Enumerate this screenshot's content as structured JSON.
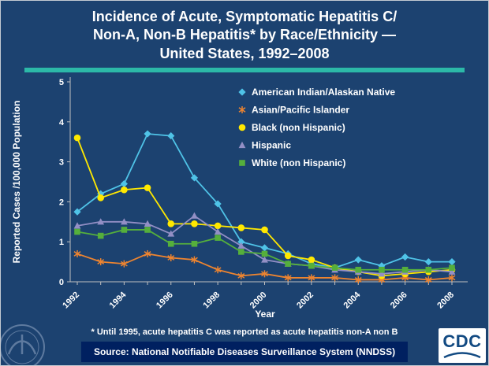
{
  "title": "Incidence of Acute, Symptomatic Hepatitis C/\nNon-A, Non-B Hepatitis* by Race/Ethnicity —\nUnited States, 1992–2008",
  "footnote": "* Until 1995, acute hepatitis C was reported as acute hepatitis non-A non B",
  "source": "Source: National Notifiable Diseases Surveillance System (NNDSS)",
  "cdc_logo_text": "CDC",
  "colors": {
    "background": "#1c4270",
    "divider_teal": "#2cb9a8",
    "source_bar_bg": "#002060",
    "cdc_blue": "#124a82"
  },
  "chart_data": {
    "type": "line",
    "title": "",
    "xlabel": "Year",
    "ylabel": "Reported Cases /100,000 Population",
    "x": [
      1992,
      1993,
      1994,
      1995,
      1996,
      1997,
      1998,
      1999,
      2000,
      2001,
      2002,
      2003,
      2004,
      2005,
      2006,
      2007,
      2008
    ],
    "x_tick_labels": [
      1992,
      1994,
      1996,
      1998,
      2000,
      2002,
      2004,
      2006,
      2008
    ],
    "ylim": [
      0,
      5
    ],
    "yticks": [
      0,
      1,
      2,
      3,
      4,
      5
    ],
    "grid": false,
    "legend_position": "top-right",
    "axis_color": "#c0c0c0",
    "series": [
      {
        "name": "American Indian/Alaskan Native",
        "marker": "diamond",
        "color": "#4fc3e7",
        "values": [
          1.75,
          2.2,
          2.45,
          3.7,
          3.65,
          2.6,
          1.95,
          1.0,
          0.85,
          0.7,
          0.45,
          0.35,
          0.55,
          0.4,
          0.62,
          0.5,
          0.5
        ]
      },
      {
        "name": "Asian/Pacific Islander",
        "marker": "star",
        "color": "#ed8430",
        "values": [
          0.7,
          0.5,
          0.45,
          0.7,
          0.6,
          0.55,
          0.3,
          0.15,
          0.2,
          0.1,
          0.1,
          0.1,
          0.05,
          0.05,
          0.1,
          0.05,
          0.1
        ]
      },
      {
        "name": "Black (non Hispanic)",
        "marker": "circle",
        "color": "#ffe800",
        "values": [
          3.6,
          2.1,
          2.3,
          2.35,
          1.45,
          1.45,
          1.4,
          1.35,
          1.3,
          0.65,
          0.55,
          0.35,
          0.25,
          0.15,
          0.2,
          0.25,
          0.3
        ]
      },
      {
        "name": "Hispanic",
        "marker": "triangle",
        "color": "#938fc5",
        "values": [
          1.4,
          1.5,
          1.5,
          1.45,
          1.2,
          1.65,
          1.25,
          0.9,
          0.55,
          0.45,
          0.4,
          0.3,
          0.25,
          0.2,
          0.25,
          0.3,
          0.25
        ]
      },
      {
        "name": "White (non Hispanic)",
        "marker": "square",
        "color": "#55af3c",
        "values": [
          1.25,
          1.15,
          1.3,
          1.3,
          0.95,
          0.95,
          1.1,
          0.75,
          0.7,
          0.45,
          0.4,
          0.35,
          0.3,
          0.3,
          0.3,
          0.3,
          0.35
        ]
      }
    ]
  }
}
